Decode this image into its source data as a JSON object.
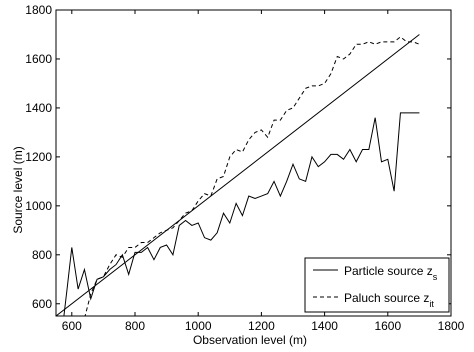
{
  "chart_data": {
    "type": "line",
    "title": "",
    "xlabel": "Observation level (m)",
    "ylabel": "Source level (m)",
    "xlim": [
      550,
      1800
    ],
    "ylim": [
      550,
      1800
    ],
    "xticks": [
      600,
      800,
      1000,
      1200,
      1400,
      1600,
      1800
    ],
    "yticks": [
      600,
      800,
      1000,
      1200,
      1400,
      1600,
      1800
    ],
    "grid": false,
    "legend_position": "bottom-right",
    "legend": [
      {
        "label": "Particle source z",
        "subscript": "s",
        "style": "solid"
      },
      {
        "label": "Paluch source z",
        "subscript": "it",
        "style": "dashed"
      }
    ],
    "series": [
      {
        "name": "Particle source z_s",
        "style": "solid",
        "x": [
          575,
          585,
          600,
          620,
          640,
          660,
          680,
          700,
          720,
          740,
          760,
          780,
          800,
          820,
          840,
          860,
          880,
          900,
          920,
          940,
          960,
          980,
          1000,
          1020,
          1040,
          1060,
          1080,
          1100,
          1120,
          1140,
          1160,
          1180,
          1200,
          1220,
          1240,
          1260,
          1280,
          1300,
          1320,
          1340,
          1360,
          1380,
          1400,
          1420,
          1440,
          1460,
          1480,
          1500,
          1520,
          1540,
          1560,
          1580,
          1600,
          1620,
          1640,
          1660,
          1680,
          1700
        ],
        "y": [
          550,
          660,
          830,
          660,
          740,
          620,
          700,
          710,
          740,
          760,
          800,
          720,
          810,
          810,
          830,
          780,
          830,
          840,
          800,
          920,
          940,
          920,
          930,
          870,
          860,
          890,
          970,
          930,
          1010,
          960,
          1040,
          1030,
          1040,
          1050,
          1100,
          1040,
          1100,
          1170,
          1110,
          1100,
          1200,
          1160,
          1180,
          1210,
          1210,
          1190,
          1230,
          1180,
          1230,
          1230,
          1360,
          1180,
          1190,
          1060,
          1380,
          1380,
          1380,
          1380
        ]
      },
      {
        "name": "Paluch source z_it",
        "style": "dashed",
        "x": [
          600,
          620,
          640,
          660,
          680,
          700,
          720,
          740,
          760,
          780,
          800,
          820,
          840,
          860,
          880,
          900,
          920,
          940,
          960,
          980,
          1000,
          1020,
          1040,
          1060,
          1080,
          1100,
          1120,
          1140,
          1160,
          1180,
          1200,
          1220,
          1240,
          1260,
          1280,
          1300,
          1320,
          1340,
          1360,
          1380,
          1400,
          1420,
          1440,
          1460,
          1480,
          1500,
          1520,
          1540,
          1560,
          1580,
          1600,
          1620,
          1640,
          1660,
          1680,
          1700
        ],
        "y": [
          540,
          550,
          540,
          640,
          700,
          710,
          760,
          800,
          790,
          830,
          830,
          850,
          850,
          870,
          890,
          900,
          910,
          940,
          970,
          980,
          1020,
          1050,
          1040,
          1110,
          1120,
          1200,
          1230,
          1220,
          1270,
          1300,
          1310,
          1280,
          1350,
          1350,
          1390,
          1400,
          1440,
          1480,
          1490,
          1490,
          1500,
          1540,
          1610,
          1600,
          1620,
          1660,
          1660,
          1670,
          1660,
          1670,
          1670,
          1670,
          1690,
          1670,
          1670,
          1660
        ]
      },
      {
        "name": "",
        "style": "solid",
        "x": [
          550,
          1700
        ],
        "y": [
          550,
          1700
        ]
      }
    ]
  }
}
